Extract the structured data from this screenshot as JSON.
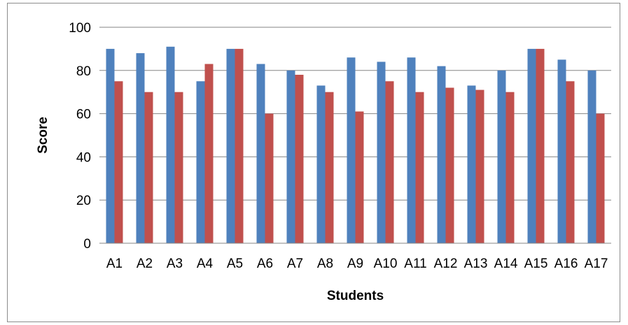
{
  "chart_data": {
    "type": "bar",
    "title": "",
    "xlabel": "Students",
    "ylabel": "Score",
    "categories": [
      "A1",
      "A2",
      "A3",
      "A4",
      "A5",
      "A6",
      "A7",
      "A8",
      "A9",
      "A10",
      "A11",
      "A12",
      "A13",
      "A14",
      "A15",
      "A16",
      "A17"
    ],
    "series": [
      {
        "values": [
          90,
          88,
          91,
          75,
          90,
          83,
          80,
          73,
          86,
          84,
          86,
          82,
          73,
          80,
          90,
          85,
          80
        ],
        "color": "#4f81bd"
      },
      {
        "values": [
          75,
          70,
          70,
          83,
          90,
          60,
          78,
          70,
          61,
          75,
          70,
          72,
          71,
          70,
          90,
          75,
          60
        ],
        "color": "#c0504d"
      }
    ],
    "ylim": [
      0,
      100
    ],
    "yticks": [
      0,
      20,
      40,
      60,
      80,
      100
    ],
    "grid": true,
    "legend": "none"
  }
}
